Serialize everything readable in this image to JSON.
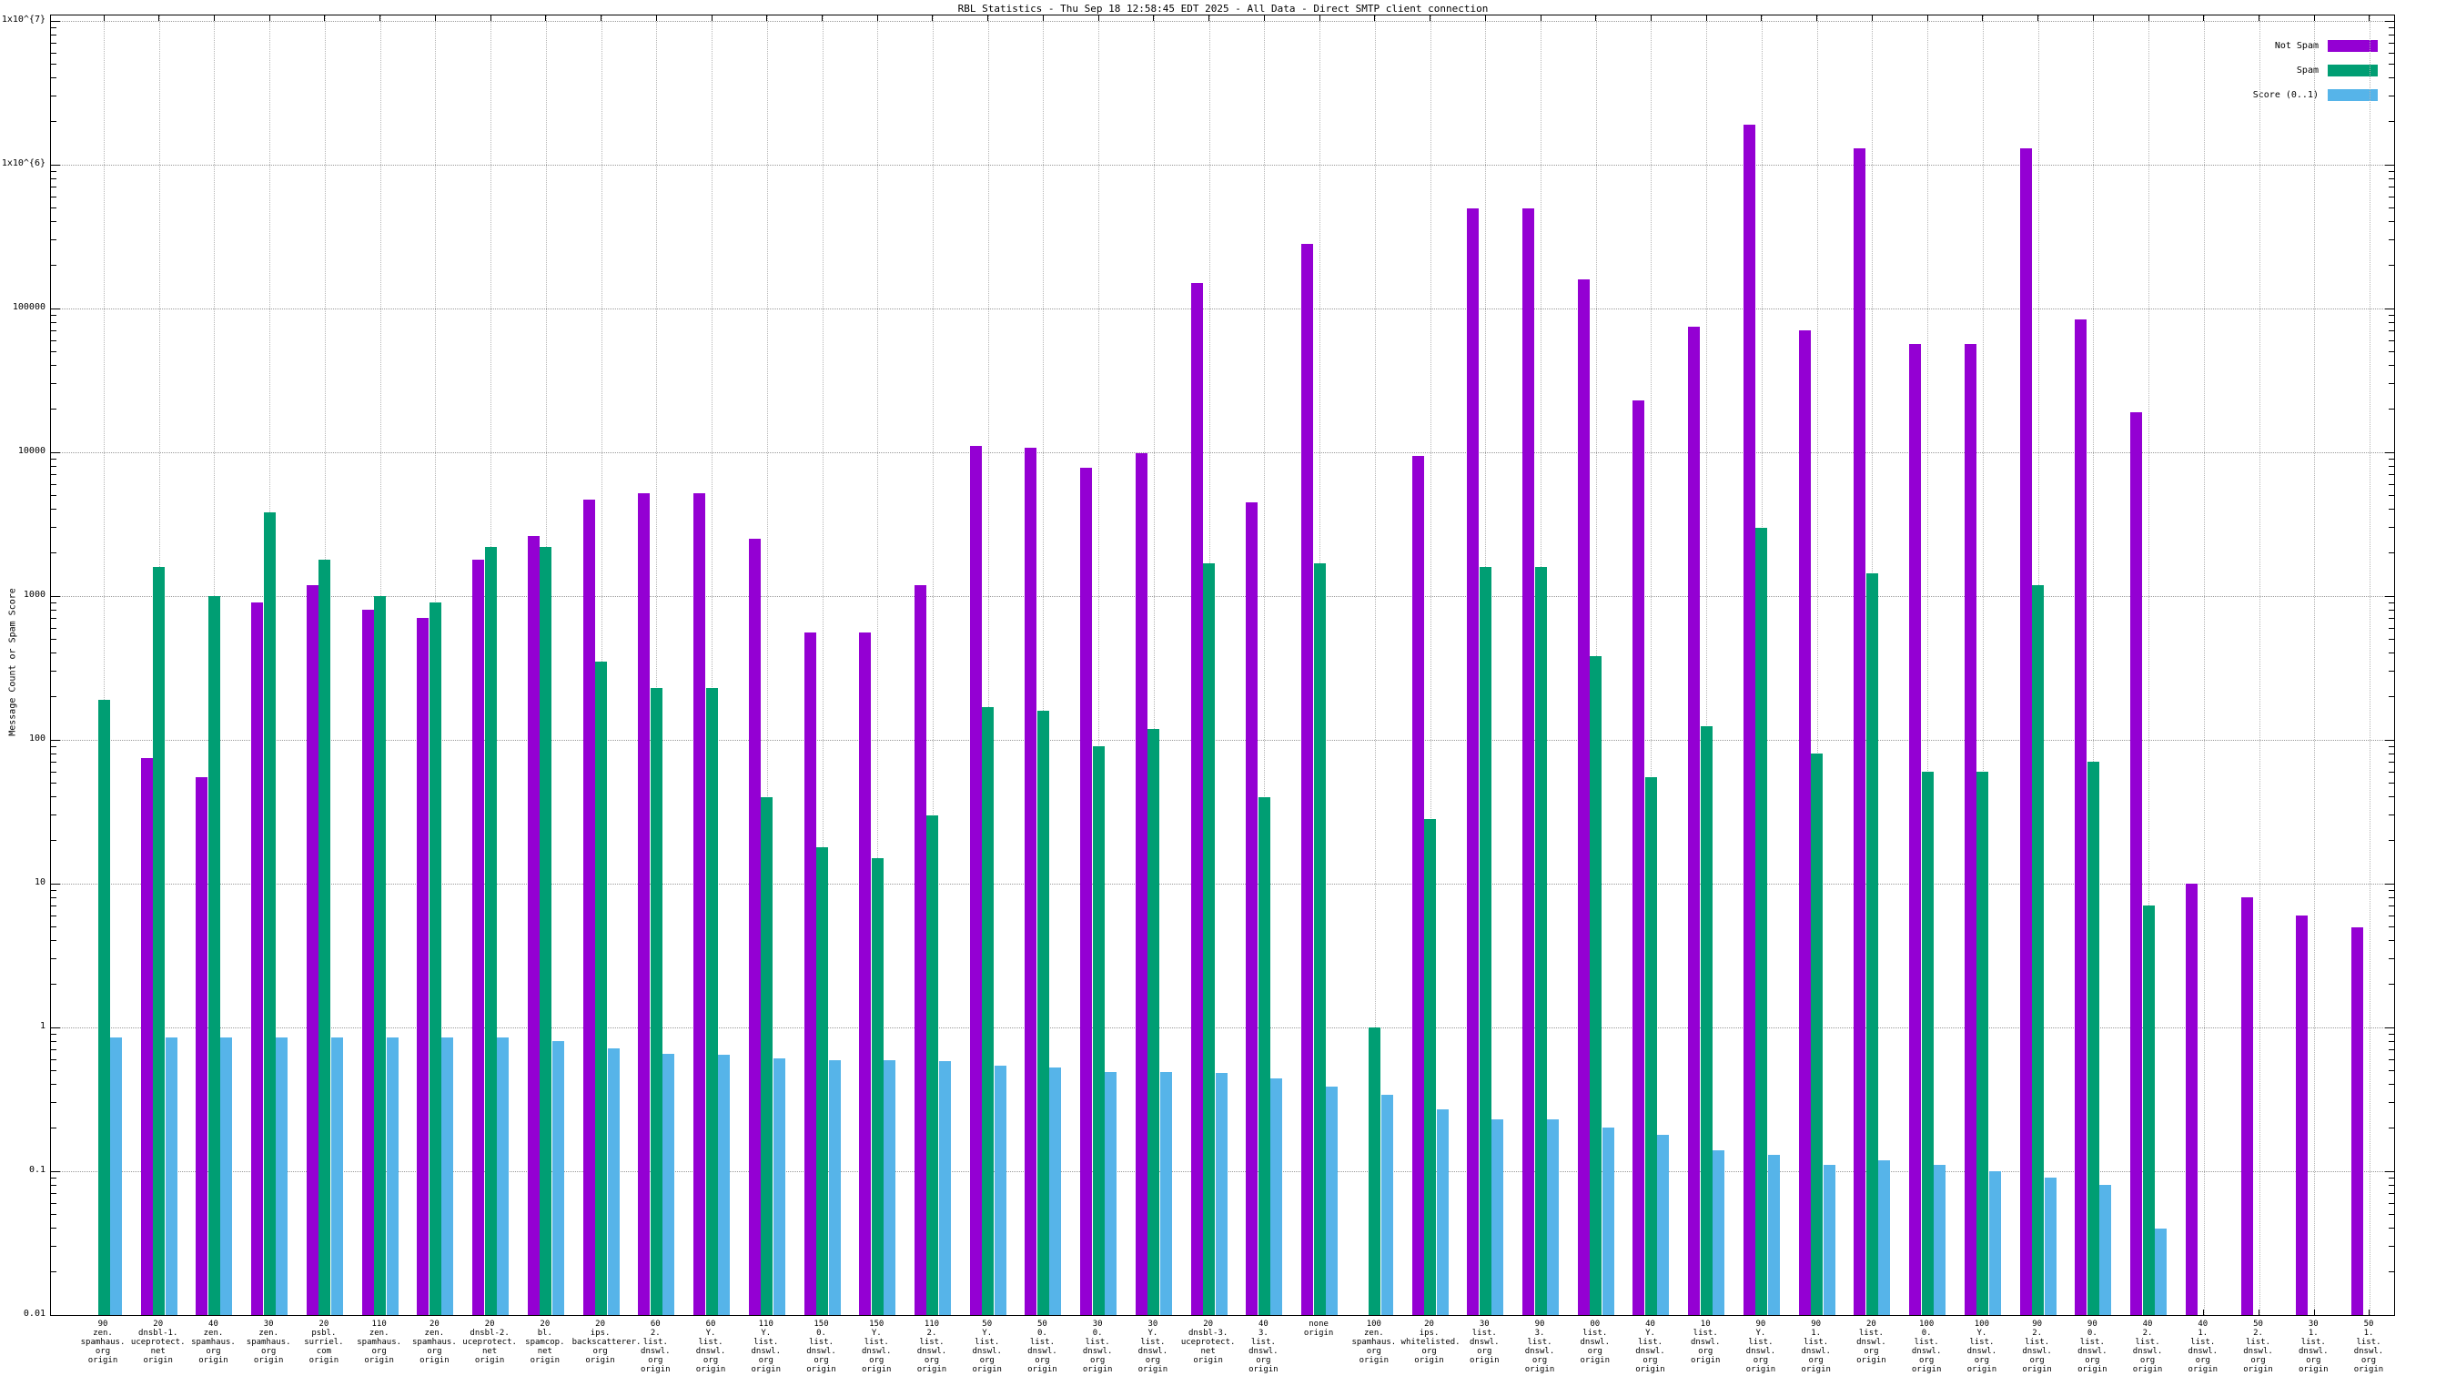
{
  "page": {
    "title": "RBL Statistics - Thu Sep 18 12:58:45 EDT 2025 - All Data - Direct SMTP client connection"
  },
  "chart_data": {
    "type": "bar",
    "title": "RBL Statistics - Thu Sep 18 12:58:45 EDT 2025 - All Data - Direct SMTP client connection",
    "xlabel": "",
    "ylabel": "Message Count or Spam Score",
    "y_scale": "log10",
    "ylim": [
      0.01,
      10000000
    ],
    "y_tick_labels": [
      "1x10^{7}",
      "1x10^{6}",
      "100000",
      "10000",
      "1000",
      "100",
      "10",
      "1",
      "0.1",
      "0.01"
    ],
    "grid": true,
    "legend_position": "top-right",
    "categories": [
      [
        "90",
        "zen.",
        "spamhaus.",
        "org",
        "origin"
      ],
      [
        "20",
        "dnsbl-1.",
        "uceprotect.",
        "net",
        "origin"
      ],
      [
        "40",
        "zen.",
        "spamhaus.",
        "org",
        "origin"
      ],
      [
        "30",
        "zen.",
        "spamhaus.",
        "org",
        "origin"
      ],
      [
        "20",
        "psbl.",
        "surriel.",
        "com",
        "origin"
      ],
      [
        "110",
        "zen.",
        "spamhaus.",
        "org",
        "origin"
      ],
      [
        "20",
        "zen.",
        "spamhaus.",
        "org",
        "origin"
      ],
      [
        "20",
        "dnsbl-2.",
        "uceprotect.",
        "net",
        "origin"
      ],
      [
        "20",
        "bl.",
        "spamcop.",
        "net",
        "origin"
      ],
      [
        "20",
        "ips.",
        "backscatterer.",
        "org",
        "origin"
      ],
      [
        "60",
        "2.",
        "list.",
        "dnswl.",
        "org",
        "origin"
      ],
      [
        "60",
        "Y.",
        "list.",
        "dnswl.",
        "org",
        "origin"
      ],
      [
        "110",
        "Y.",
        "list.",
        "dnswl.",
        "org",
        "origin"
      ],
      [
        "150",
        "0.",
        "list.",
        "dnswl.",
        "org",
        "origin"
      ],
      [
        "150",
        "Y.",
        "list.",
        "dnswl.",
        "org",
        "origin"
      ],
      [
        "110",
        "2.",
        "list.",
        "dnswl.",
        "org",
        "origin"
      ],
      [
        "50",
        "Y.",
        "list.",
        "dnswl.",
        "org",
        "origin"
      ],
      [
        "50",
        "0.",
        "list.",
        "dnswl.",
        "org",
        "origin"
      ],
      [
        "30",
        "0.",
        "list.",
        "dnswl.",
        "org",
        "origin"
      ],
      [
        "30",
        "Y.",
        "list.",
        "dnswl.",
        "org",
        "origin"
      ],
      [
        "20",
        "dnsbl-3.",
        "uceprotect.",
        "net",
        "origin"
      ],
      [
        "40",
        "3.",
        "list.",
        "dnswl.",
        "org",
        "origin"
      ],
      [
        "none",
        "origin"
      ],
      [
        "100",
        "zen.",
        "spamhaus.",
        "org",
        "origin"
      ],
      [
        "20",
        "ips.",
        "whitelisted.",
        "org",
        "origin"
      ],
      [
        "30",
        "list.",
        "dnswl.",
        "org",
        "origin"
      ],
      [
        "90",
        "3.",
        "list.",
        "dnswl.",
        "org",
        "origin"
      ],
      [
        "00",
        "list.",
        "dnswl.",
        "org",
        "origin"
      ],
      [
        "40",
        "Y.",
        "list.",
        "dnswl.",
        "org",
        "origin"
      ],
      [
        "10",
        "list.",
        "dnswl.",
        "org",
        "origin"
      ],
      [
        "90",
        "Y.",
        "list.",
        "dnswl.",
        "org",
        "origin"
      ],
      [
        "90",
        "1.",
        "list.",
        "dnswl.",
        "org",
        "origin"
      ],
      [
        "20",
        "list.",
        "dnswl.",
        "org",
        "origin"
      ],
      [
        "100",
        "0.",
        "list.",
        "dnswl.",
        "org",
        "origin"
      ],
      [
        "100",
        "Y.",
        "list.",
        "dnswl.",
        "org",
        "origin"
      ],
      [
        "90",
        "2.",
        "list.",
        "dnswl.",
        "org",
        "origin"
      ],
      [
        "90",
        "0.",
        "list.",
        "dnswl.",
        "org",
        "origin"
      ],
      [
        "40",
        "2.",
        "list.",
        "dnswl.",
        "org",
        "origin"
      ],
      [
        "40",
        "1.",
        "list.",
        "dnswl.",
        "org",
        "origin"
      ],
      [
        "50",
        "2.",
        "list.",
        "dnswl.",
        "org",
        "origin"
      ],
      [
        "30",
        "1.",
        "list.",
        "dnswl.",
        "org",
        "origin"
      ],
      [
        "50",
        "1.",
        "list.",
        "dnswl.",
        "org",
        "origin"
      ]
    ],
    "series": [
      {
        "name": "Not Spam",
        "color": "#9400d3",
        "values": [
          null,
          75,
          55,
          900,
          1200,
          800,
          700,
          1800,
          2600,
          4700,
          5200,
          5200,
          2500,
          560,
          560,
          1200,
          11000,
          10800,
          7800,
          9800,
          150000,
          4500,
          280000,
          null,
          9500,
          500000,
          500000,
          160000,
          23000,
          75000,
          1900000,
          70000,
          1300000,
          57000,
          57000,
          1300000,
          84000,
          19000,
          10,
          8,
          6,
          5
        ]
      },
      {
        "name": "Spam",
        "color": "#009e73",
        "values": [
          190,
          1600,
          1000,
          3800,
          1800,
          1000,
          900,
          2200,
          2200,
          350,
          230,
          230,
          40,
          18,
          15,
          30,
          170,
          160,
          90,
          120,
          1700,
          40,
          1700,
          1,
          28,
          1600,
          1600,
          380,
          55,
          125,
          3000,
          80,
          1450,
          60,
          60,
          1200,
          70,
          7,
          null,
          null,
          null,
          null
        ]
      },
      {
        "name": "Score (0..1)",
        "color": "#56b4e9",
        "values": [
          0.85,
          0.85,
          0.85,
          0.85,
          0.85,
          0.85,
          0.85,
          0.85,
          0.8,
          0.72,
          0.66,
          0.65,
          0.61,
          0.59,
          0.59,
          0.58,
          0.54,
          0.53,
          0.49,
          0.49,
          0.48,
          0.44,
          0.39,
          0.34,
          0.27,
          0.23,
          0.23,
          0.2,
          0.18,
          0.14,
          0.13,
          0.11,
          0.12,
          0.11,
          0.1,
          0.09,
          0.08,
          0.04,
          null,
          null,
          null,
          null
        ]
      }
    ]
  }
}
